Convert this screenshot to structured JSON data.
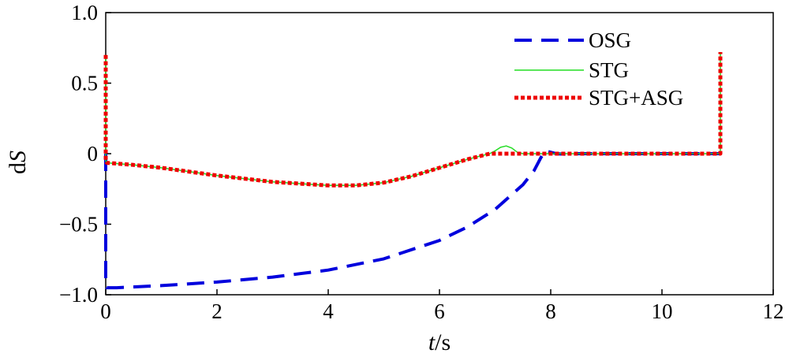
{
  "chart_data": {
    "type": "line",
    "title": "",
    "xlabel_var": "t",
    "xlabel_unit": "/s",
    "ylabel_prefix": "d",
    "ylabel_var": "S",
    "xlim": [
      0,
      12
    ],
    "ylim": [
      -1.0,
      1.0
    ],
    "xticks": [
      0,
      2,
      4,
      6,
      8,
      10,
      12
    ],
    "xtick_labels": [
      "0",
      "2",
      "4",
      "6",
      "8",
      "10",
      "12"
    ],
    "yticks": [
      -1.0,
      -0.5,
      0,
      0.5,
      1.0
    ],
    "ytick_labels": [
      "−1.0",
      "−0.5",
      "0",
      "0.5",
      "1.0"
    ],
    "grid": false,
    "legend_position": "top-right",
    "series": [
      {
        "name": "OSG",
        "color": "#0000dd",
        "style": "dashed",
        "x": [
          0,
          0,
          0.02,
          0.2,
          1,
          2,
          3,
          4,
          5,
          6,
          6.5,
          7,
          7.5,
          7.7,
          7.82,
          7.9,
          8.0,
          8.1,
          8.3,
          8.5,
          9,
          10,
          11,
          11.05
        ],
        "y": [
          0.0,
          -0.93,
          -0.95,
          -0.95,
          -0.935,
          -0.91,
          -0.875,
          -0.825,
          -0.745,
          -0.615,
          -0.52,
          -0.395,
          -0.22,
          -0.12,
          -0.03,
          0.02,
          0.01,
          0.0,
          -0.005,
          0.0,
          0.0,
          0.0,
          0.0,
          0.0
        ]
      },
      {
        "name": "STG",
        "color": "#22dd22",
        "style": "solid",
        "x": [
          0,
          0,
          0.02,
          0.5,
          1,
          2,
          3,
          4,
          4.5,
          5,
          5.5,
          6,
          6.5,
          6.9,
          7.0,
          7.1,
          7.2,
          7.3,
          7.4,
          7.5,
          8,
          9,
          10,
          11,
          11.05,
          11.05
        ],
        "y": [
          0.7,
          -0.05,
          -0.065,
          -0.08,
          -0.1,
          -0.155,
          -0.2,
          -0.225,
          -0.225,
          -0.205,
          -0.16,
          -0.1,
          -0.04,
          0.0,
          0.02,
          0.045,
          0.055,
          0.04,
          0.01,
          0.0,
          0.0,
          0.0,
          0.0,
          0.0,
          0.0,
          0.72
        ]
      },
      {
        "name": "STG+ASG",
        "color": "#ee0000",
        "style": "dotted",
        "x": [
          0,
          0,
          0.02,
          0.5,
          1,
          2,
          3,
          4,
          4.5,
          5,
          5.5,
          6,
          6.5,
          6.9,
          7.0,
          8,
          9,
          10,
          11,
          11.05,
          11.05
        ],
        "y": [
          0.7,
          -0.05,
          -0.065,
          -0.08,
          -0.1,
          -0.155,
          -0.2,
          -0.225,
          -0.225,
          -0.205,
          -0.16,
          -0.1,
          -0.04,
          0.0,
          0.0,
          0.0,
          0.0,
          0.0,
          0.0,
          0.0,
          0.72
        ]
      }
    ]
  }
}
